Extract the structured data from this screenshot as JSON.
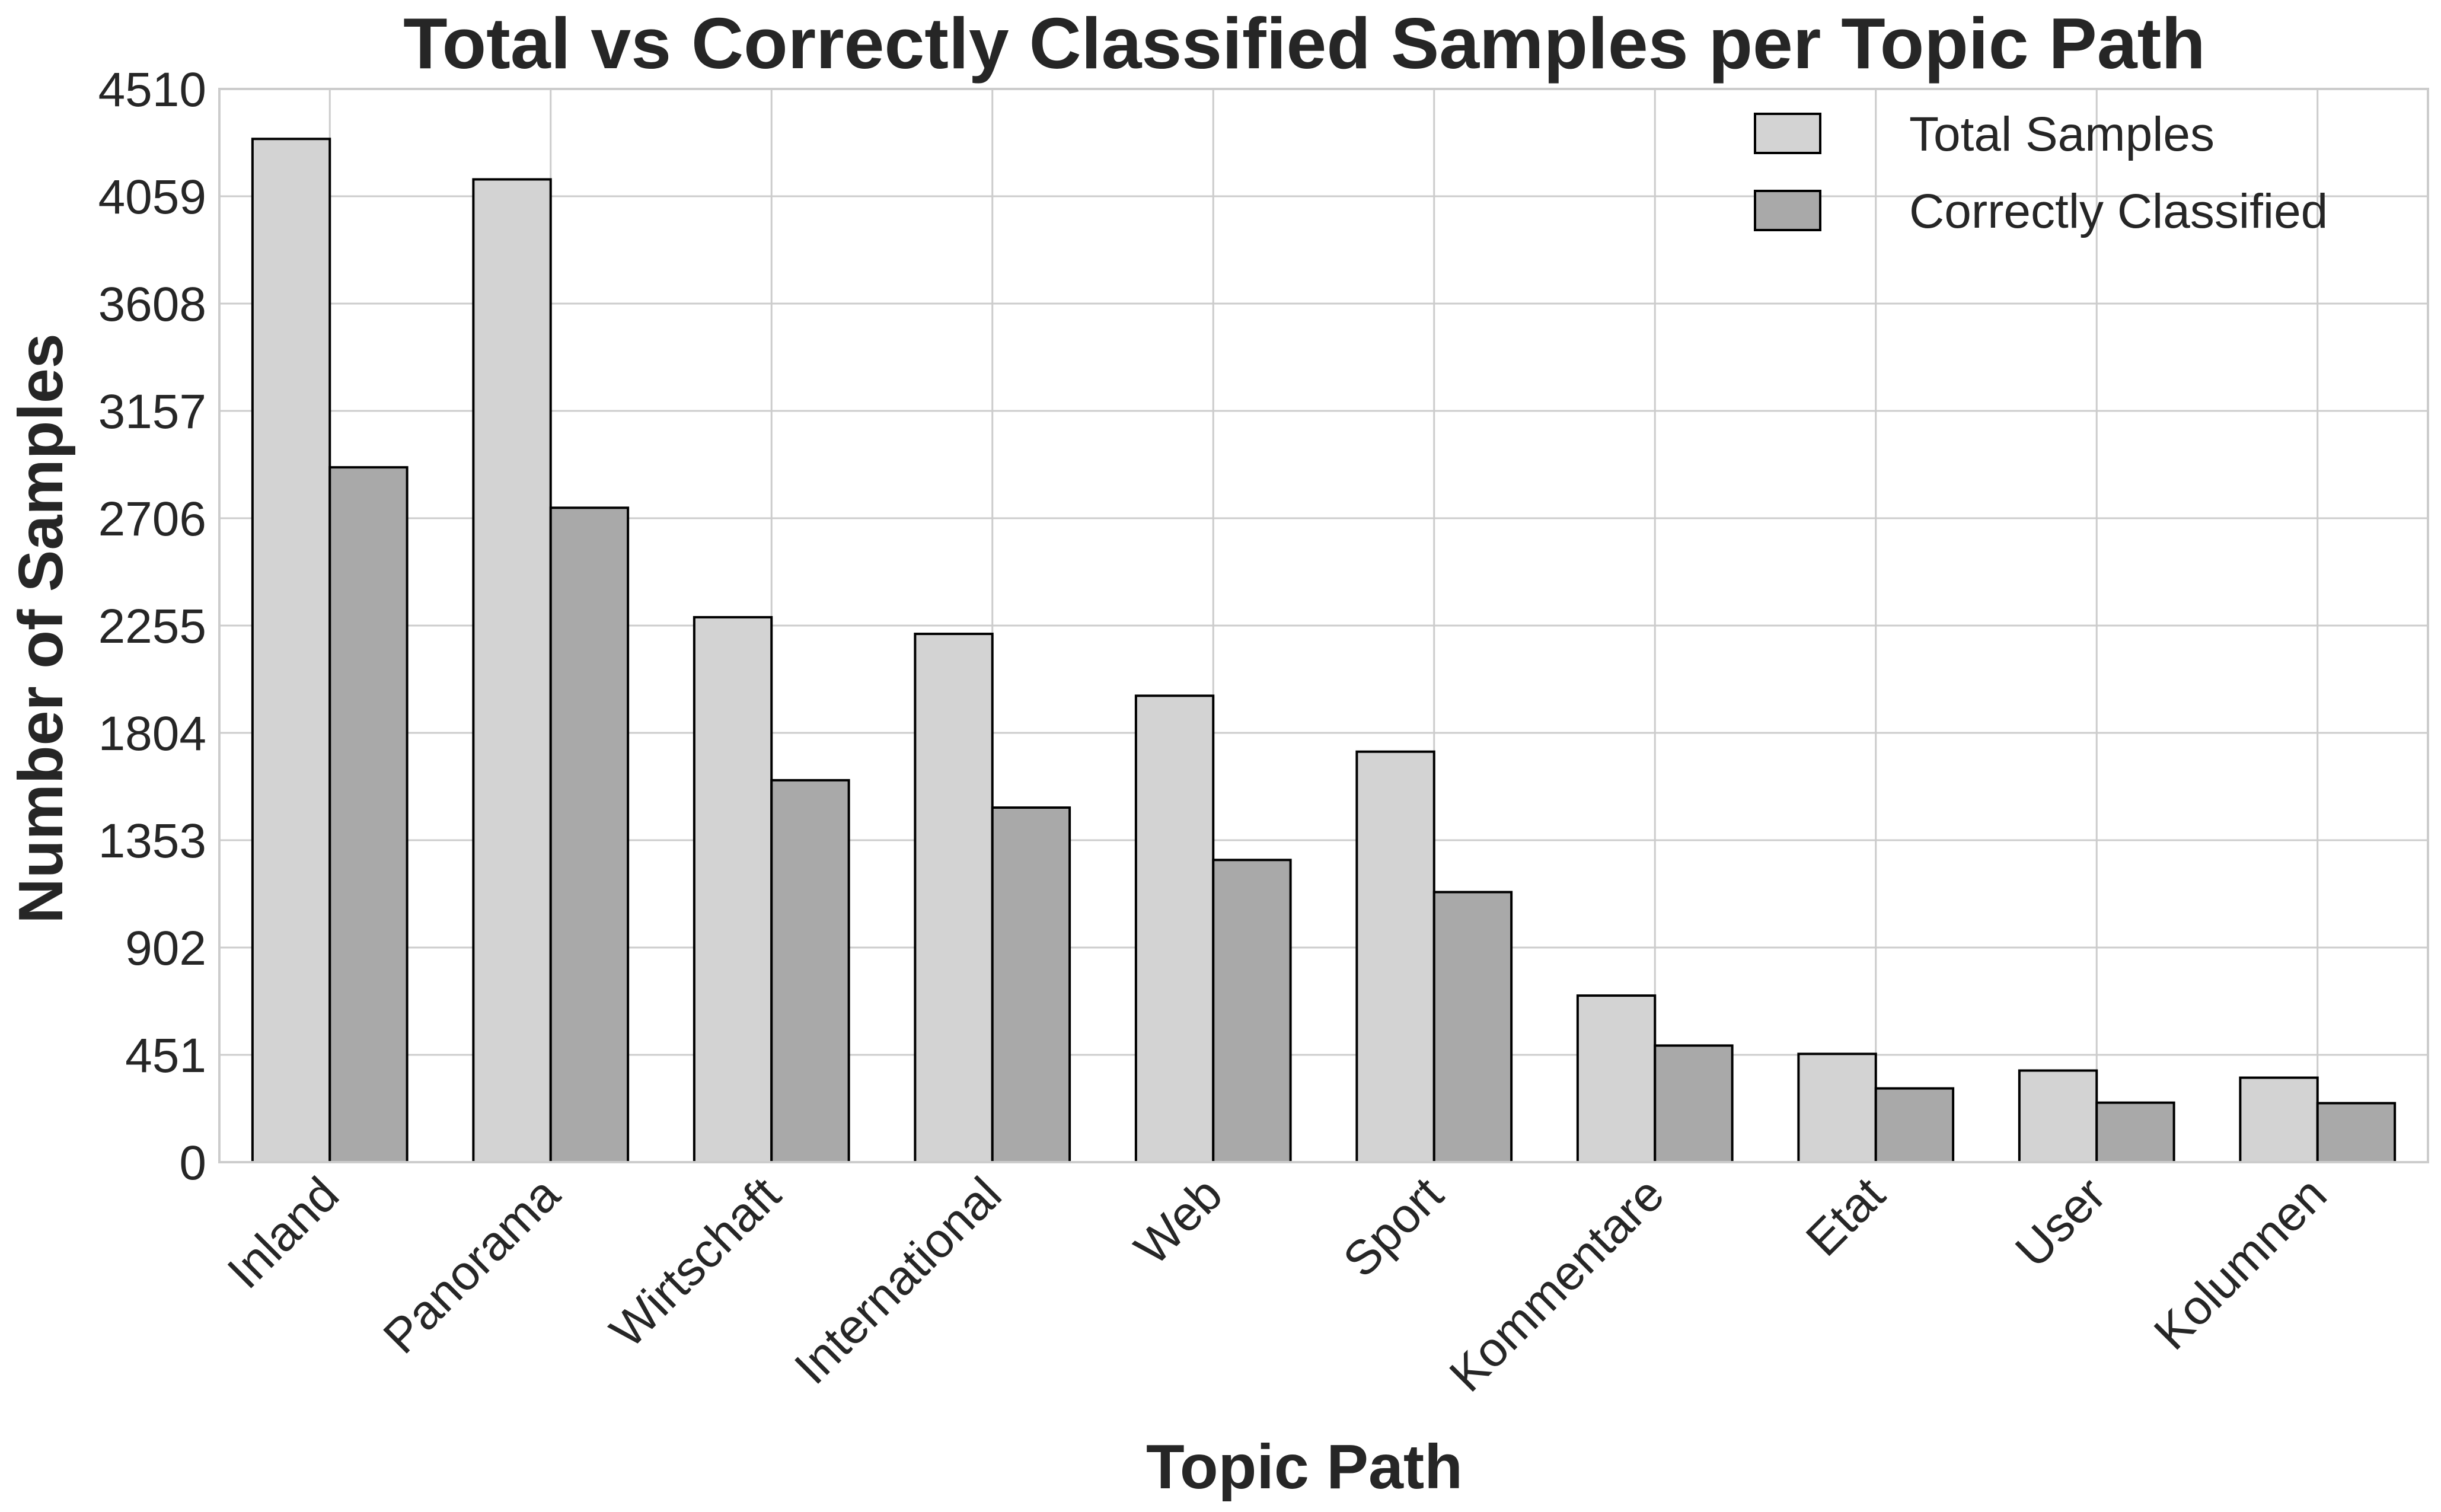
{
  "chart_data": {
    "type": "bar",
    "title": "Total vs Correctly Classified Samples per Topic Path",
    "xlabel": "Topic Path",
    "ylabel": "Number of Samples",
    "categories": [
      "Inland",
      "Panorama",
      "Wirtschaft",
      "International",
      "Web",
      "Sport",
      "Kommentare",
      "Etat",
      "User",
      "Kolumnen"
    ],
    "series": [
      {
        "name": "Total Samples",
        "color": "#d3d3d3",
        "values": [
          4300,
          4130,
          2290,
          2220,
          1960,
          1725,
          700,
          455,
          385,
          355
        ]
      },
      {
        "name": "Correctly Classified",
        "color": "#a9a9a9",
        "values": [
          2920,
          2750,
          1605,
          1490,
          1270,
          1135,
          490,
          310,
          250,
          248
        ]
      }
    ],
    "yticks": [
      0,
      451,
      902,
      1353,
      1804,
      2255,
      2706,
      3157,
      3608,
      4059,
      4510
    ],
    "ylim": [
      0,
      4510
    ],
    "grid": true,
    "legend": "top-right"
  }
}
